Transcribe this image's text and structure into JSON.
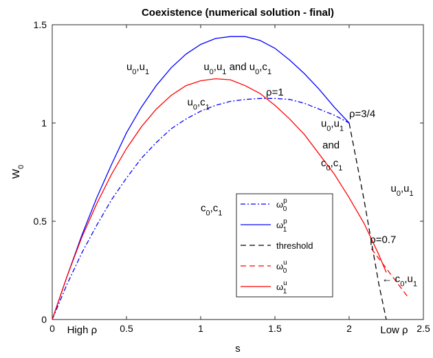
{
  "chart_data": {
    "type": "line",
    "title": "Coexistence (numerical solution - final)",
    "xlabel": "s",
    "ylabel": "W",
    "ylabel_sub": "0",
    "xlim": [
      0,
      2.5
    ],
    "ylim": [
      0,
      1.5
    ],
    "grid": false,
    "box": true,
    "xticks": [
      0,
      0.5,
      1,
      1.5,
      2,
      2.5
    ],
    "xtick_labels": [
      "0",
      "0.5",
      "1",
      "1.5",
      "2",
      "2.5"
    ],
    "yticks": [
      0,
      0.5,
      1,
      1.5
    ],
    "ytick_labels": [
      "0",
      "0.5",
      "1",
      "1.5"
    ],
    "legend_placement": "lower-center",
    "series": [
      {
        "key": "w0p",
        "name": "ω",
        "name_sub": "0",
        "name_sup": "p",
        "color": "#0000ff",
        "dash": "dashdot",
        "x": [
          0,
          0.1,
          0.2,
          0.3,
          0.4,
          0.5,
          0.6,
          0.7,
          0.8,
          0.9,
          1.0,
          1.1,
          1.2,
          1.3,
          1.4,
          1.5,
          1.6,
          1.7,
          1.8,
          1.9,
          2.0
        ],
        "y": [
          0,
          0.18,
          0.34,
          0.48,
          0.61,
          0.72,
          0.82,
          0.9,
          0.97,
          1.02,
          1.06,
          1.09,
          1.11,
          1.12,
          1.125,
          1.125,
          1.12,
          1.1,
          1.07,
          1.04,
          1.0
        ]
      },
      {
        "key": "w1p",
        "name": "ω",
        "name_sub": "1",
        "name_sup": "p",
        "color": "#0000ff",
        "dash": "solid",
        "x": [
          0,
          0.1,
          0.2,
          0.3,
          0.4,
          0.5,
          0.6,
          0.7,
          0.8,
          0.9,
          1.0,
          1.1,
          1.2,
          1.3,
          1.4,
          1.5,
          1.6,
          1.7,
          1.8,
          1.9,
          2.0
        ],
        "y": [
          0,
          0.22,
          0.43,
          0.62,
          0.79,
          0.95,
          1.08,
          1.19,
          1.28,
          1.35,
          1.4,
          1.43,
          1.44,
          1.44,
          1.42,
          1.38,
          1.32,
          1.25,
          1.17,
          1.08,
          1.0
        ]
      },
      {
        "key": "thr",
        "name": "threshold",
        "name_sub": "",
        "name_sup": "",
        "color": "#000000",
        "dash": "dashed",
        "x": [
          2.0,
          2.1,
          2.2,
          2.25
        ],
        "y": [
          1.0,
          0.61,
          0.18,
          0.0
        ]
      },
      {
        "key": "w0u",
        "name": "ω",
        "name_sub": "0",
        "name_sup": "u",
        "color": "#ff0000",
        "dash": "dashed",
        "x": [
          2.15,
          2.2,
          2.25,
          2.3,
          2.35,
          2.4
        ],
        "y": [
          0.36,
          0.31,
          0.26,
          0.21,
          0.16,
          0.11
        ]
      },
      {
        "key": "w1u",
        "name": "ω",
        "name_sub": "1",
        "name_sup": "u",
        "color": "#ff0000",
        "dash": "solid",
        "x": [
          0,
          0.1,
          0.2,
          0.3,
          0.4,
          0.5,
          0.6,
          0.7,
          0.8,
          0.9,
          1.0,
          1.1,
          1.2,
          1.3,
          1.4,
          1.5,
          1.6,
          1.7,
          1.8,
          1.9,
          2.0,
          2.1,
          2.2,
          2.25
        ],
        "y": [
          0,
          0.22,
          0.42,
          0.59,
          0.74,
          0.87,
          0.98,
          1.07,
          1.14,
          1.19,
          1.215,
          1.225,
          1.22,
          1.19,
          1.15,
          1.09,
          1.02,
          0.94,
          0.84,
          0.74,
          0.62,
          0.49,
          0.33,
          0.24
        ]
      }
    ],
    "annotations": [
      {
        "key": "a1",
        "parts": [
          [
            "u",
            ""
          ],
          [
            "0",
            "sub"
          ],
          [
            ",u",
            ""
          ],
          [
            "1",
            "sub"
          ]
        ],
        "x": 0.5,
        "y": 1.27
      },
      {
        "key": "a2",
        "parts": [
          [
            "u",
            ""
          ],
          [
            "0",
            "sub"
          ],
          [
            ",u",
            ""
          ],
          [
            "1",
            "sub"
          ],
          [
            " and u",
            ""
          ],
          [
            "0",
            "sub"
          ],
          [
            ",c",
            ""
          ],
          [
            "1",
            "sub"
          ]
        ],
        "x": 1.02,
        "y": 1.27
      },
      {
        "key": "a3",
        "parts": [
          [
            "u",
            ""
          ],
          [
            "0",
            "sub"
          ],
          [
            ",c",
            ""
          ],
          [
            "1",
            "sub"
          ]
        ],
        "x": 0.91,
        "y": 1.09
      },
      {
        "key": "a4",
        "parts": [
          [
            "ρ",
            ""
          ],
          [
            "=1",
            ""
          ]
        ],
        "x": 1.44,
        "y": 1.14
      },
      {
        "key": "a5",
        "parts": [
          [
            "ρ",
            ""
          ],
          [
            "=3/4",
            ""
          ]
        ],
        "x": 2.0,
        "y": 1.03
      },
      {
        "key": "a6",
        "parts": [
          [
            "u",
            ""
          ],
          [
            "0",
            "sub"
          ],
          [
            ",u",
            ""
          ],
          [
            "1",
            "sub"
          ]
        ],
        "x": 1.81,
        "y": 0.98
      },
      {
        "key": "a7",
        "parts": [
          [
            "and",
            ""
          ]
        ],
        "x": 1.82,
        "y": 0.87
      },
      {
        "key": "a8",
        "parts": [
          [
            "c",
            ""
          ],
          [
            "0",
            "sub"
          ],
          [
            ",c",
            ""
          ],
          [
            "1",
            "sub"
          ]
        ],
        "x": 1.81,
        "y": 0.78
      },
      {
        "key": "a9",
        "parts": [
          [
            "u",
            ""
          ],
          [
            "0",
            "sub"
          ],
          [
            ",u",
            ""
          ],
          [
            "1",
            "sub"
          ]
        ],
        "x": 2.28,
        "y": 0.65
      },
      {
        "key": "a10",
        "parts": [
          [
            "c",
            ""
          ],
          [
            "0",
            "sub"
          ],
          [
            ",c",
            ""
          ],
          [
            "1",
            "sub"
          ]
        ],
        "x": 1.0,
        "y": 0.55
      },
      {
        "key": "a11",
        "parts": [
          [
            "ρ",
            ""
          ],
          [
            "=0.7",
            ""
          ]
        ],
        "x": 2.14,
        "y": 0.39
      },
      {
        "key": "a12",
        "parts": [
          [
            "← c",
            ""
          ],
          [
            "0",
            "sub"
          ],
          [
            ",u",
            ""
          ],
          [
            "1",
            "sub"
          ]
        ],
        "x": 2.22,
        "y": 0.19
      },
      {
        "key": "a13",
        "parts": [
          [
            "High ",
            ""
          ],
          [
            "ρ",
            ""
          ]
        ],
        "x": 0.1,
        "y": -0.07
      },
      {
        "key": "a14",
        "parts": [
          [
            "Low ",
            ""
          ],
          [
            "ρ",
            ""
          ]
        ],
        "x": 2.21,
        "y": -0.07
      }
    ]
  }
}
